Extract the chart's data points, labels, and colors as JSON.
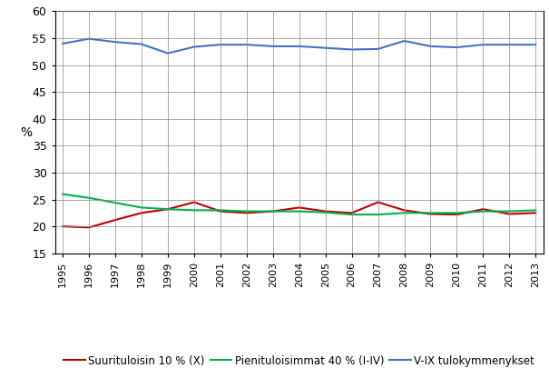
{
  "years": [
    1995,
    1996,
    1997,
    1998,
    1999,
    2000,
    2001,
    2002,
    2003,
    2004,
    2005,
    2006,
    2007,
    2008,
    2009,
    2010,
    2011,
    2012,
    2013
  ],
  "suurituloisin": [
    20.0,
    19.8,
    21.2,
    22.5,
    23.2,
    24.5,
    22.8,
    22.5,
    22.8,
    23.5,
    22.8,
    22.5,
    24.5,
    23.0,
    22.3,
    22.2,
    23.2,
    22.3,
    22.5
  ],
  "pienituloisimmat": [
    26.0,
    25.3,
    24.4,
    23.5,
    23.2,
    23.0,
    23.0,
    22.8,
    22.8,
    22.8,
    22.6,
    22.2,
    22.2,
    22.5,
    22.5,
    22.5,
    22.8,
    22.8,
    23.0
  ],
  "vix": [
    54.0,
    54.9,
    54.3,
    53.9,
    52.2,
    53.4,
    53.8,
    53.8,
    53.5,
    53.5,
    53.2,
    52.9,
    53.0,
    54.5,
    53.5,
    53.3,
    53.8,
    53.8,
    53.8
  ],
  "color_suurituloisin": "#C00000",
  "color_pienituloisimmat": "#00B050",
  "color_vix": "#4472C4",
  "ylabel": "%",
  "ylim_min": 15,
  "ylim_max": 60,
  "yticks": [
    15,
    20,
    25,
    30,
    35,
    40,
    45,
    50,
    55,
    60
  ],
  "legend_suurituloisin": "Suurituloisin 10 % (X)",
  "legend_pienituloisimmat": "Pienituloisimmat 40 % (I-IV)",
  "legend_vix": "V-IX tulokymmenykset",
  "background_color": "#FFFFFF",
  "linewidth": 1.5
}
